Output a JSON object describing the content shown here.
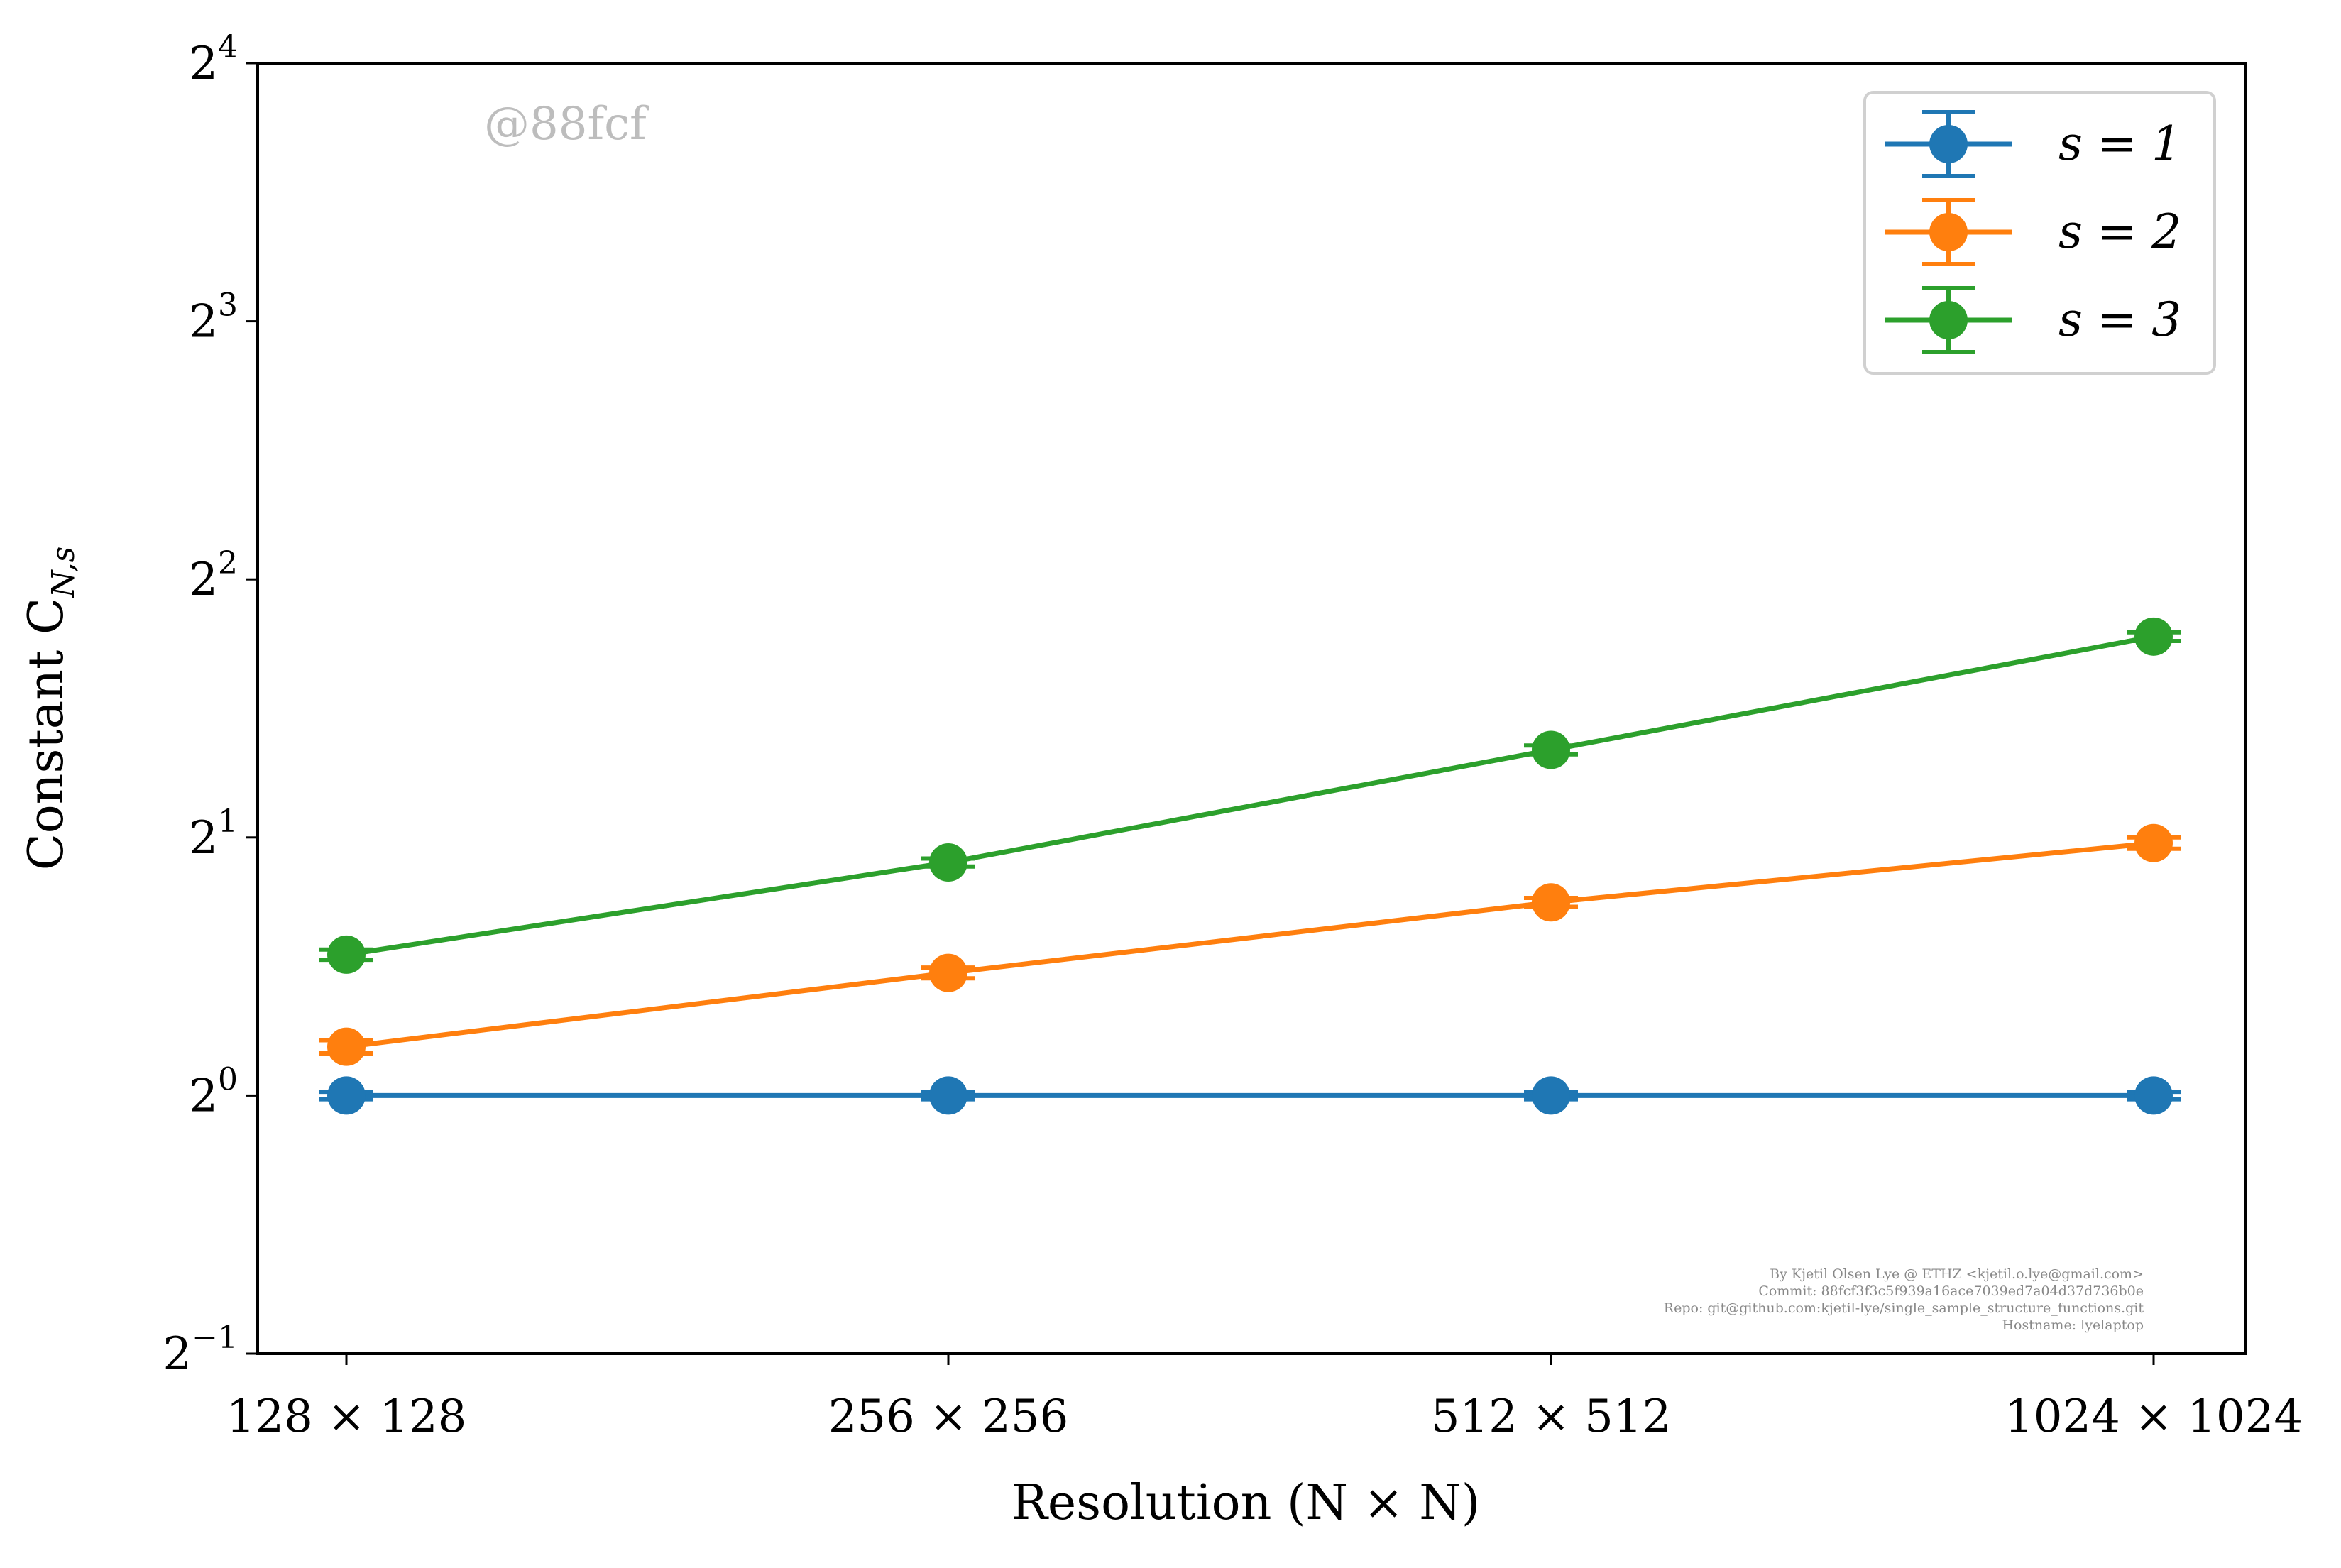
{
  "chart_data": {
    "type": "line",
    "title": "",
    "xlabel": "Resolution (N × N)",
    "ylabel": "Constant C",
    "ylabel_subscript": "N,s",
    "categories": [
      "128 × 128",
      "256 × 256",
      "512 × 512",
      "1024 × 1024"
    ],
    "y_scale": "log2",
    "ylim": [
      0.5,
      16
    ],
    "y_ticks": [
      {
        "value": 0.5,
        "base": "2",
        "exp": "−1"
      },
      {
        "value": 1,
        "base": "2",
        "exp": "0"
      },
      {
        "value": 2,
        "base": "2",
        "exp": "1"
      },
      {
        "value": 4,
        "base": "2",
        "exp": "2"
      },
      {
        "value": 8,
        "base": "2",
        "exp": "3"
      },
      {
        "value": 16,
        "base": "2",
        "exp": "4"
      }
    ],
    "grid": false,
    "legend_position": "top-right",
    "series": [
      {
        "name": "s = 1",
        "color": "#1f77b4",
        "values": [
          1.0,
          1.0,
          1.0,
          1.0
        ],
        "errors": [
          0.01,
          0.01,
          0.01,
          0.01
        ]
      },
      {
        "name": "s = 2",
        "color": "#ff7f0e",
        "values": [
          1.14,
          1.39,
          1.68,
          1.97
        ],
        "errors": [
          0.02,
          0.02,
          0.02,
          0.03
        ]
      },
      {
        "name": "s = 3",
        "color": "#2ca02c",
        "values": [
          1.46,
          1.87,
          2.53,
          3.43
        ],
        "errors": [
          0.02,
          0.02,
          0.03,
          0.04
        ]
      }
    ]
  },
  "watermark": "@88fcf",
  "credits": [
    "By Kjetil Olsen Lye @ ETHZ <kjetil.o.lye@gmail.com>",
    "Commit: 88fcf3f3c5f939a16ace7039ed7a04d37d736b0e",
    "Repo: git@github.com:kjetil-lye/single_sample_structure_functions.git",
    "Hostname: lyelaptop"
  ]
}
